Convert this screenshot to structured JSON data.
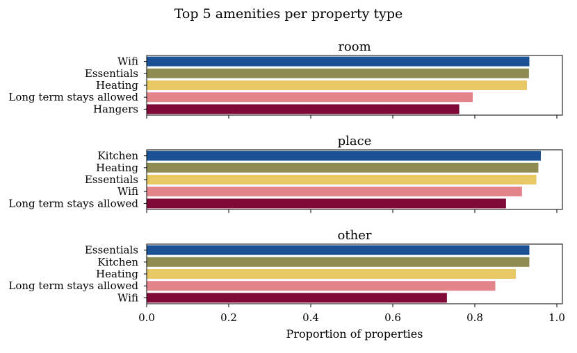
{
  "figure_title": "Top 5 amenities per property type",
  "colors": [
    "#1a5294",
    "#8f8c52",
    "#e8c765",
    "#e2848a",
    "#800a37"
  ],
  "chart_data": [
    {
      "type": "bar",
      "orientation": "horizontal",
      "title": "room",
      "categories": [
        "Wifi",
        "Essentials",
        "Heating",
        "Long term stays allowed",
        "Hangers"
      ],
      "values": [
        0.933,
        0.932,
        0.927,
        0.795,
        0.762
      ],
      "xlim": [
        0,
        1.0
      ]
    },
    {
      "type": "bar",
      "orientation": "horizontal",
      "title": "place",
      "categories": [
        "Kitchen",
        "Heating",
        "Essentials",
        "Wifi",
        "Long term stays allowed"
      ],
      "values": [
        0.961,
        0.955,
        0.95,
        0.915,
        0.876
      ],
      "xlim": [
        0,
        1.0
      ]
    },
    {
      "type": "bar",
      "orientation": "horizontal",
      "title": "other",
      "categories": [
        "Essentials",
        "Kitchen",
        "Heating",
        "Long term stays allowed",
        "Wifi"
      ],
      "values": [
        0.933,
        0.933,
        0.9,
        0.85,
        0.732
      ],
      "xlim": [
        0,
        1.0
      ]
    }
  ],
  "x_axis": {
    "label": "Proportion of properties",
    "ticks": [
      0.0,
      0.2,
      0.4,
      0.6,
      0.8,
      1.0
    ],
    "tick_labels": [
      "0.0",
      "0.2",
      "0.4",
      "0.6",
      "0.8",
      "1.0"
    ]
  }
}
